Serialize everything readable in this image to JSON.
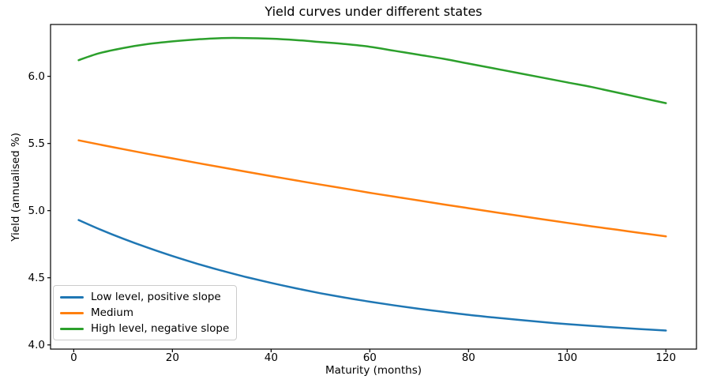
{
  "chart_data": {
    "type": "line",
    "title": "Yield curves under different states",
    "xlabel": "Maturity (months)",
    "ylabel": "Yield (annualised %)",
    "grid": false,
    "legend_position": "lower left",
    "xlim": [
      -4.7,
      126.2
    ],
    "ylim": [
      3.969,
      6.386
    ],
    "xticks": [
      {
        "value": 0,
        "label": "0"
      },
      {
        "value": 20,
        "label": "20"
      },
      {
        "value": 40,
        "label": "40"
      },
      {
        "value": 60,
        "label": "60"
      },
      {
        "value": 80,
        "label": "80"
      },
      {
        "value": 100,
        "label": "100"
      },
      {
        "value": 120,
        "label": "120"
      }
    ],
    "yticks": [
      {
        "value": 4.0,
        "label": "4.0"
      },
      {
        "value": 4.5,
        "label": "4.5"
      },
      {
        "value": 5.0,
        "label": "5.0"
      },
      {
        "value": 5.5,
        "label": "5.5"
      },
      {
        "value": 6.0,
        "label": "6.0"
      }
    ],
    "x": [
      1,
      5,
      10,
      15,
      20,
      25,
      30,
      35,
      40,
      45,
      50,
      55,
      60,
      65,
      70,
      75,
      80,
      85,
      90,
      95,
      100,
      105,
      110,
      115,
      120
    ],
    "series": [
      {
        "name": "Low level, positive slope",
        "color": "#1f77b4",
        "values": [
          4.93,
          4.865,
          4.791,
          4.724,
          4.662,
          4.605,
          4.553,
          4.505,
          4.462,
          4.422,
          4.385,
          4.352,
          4.322,
          4.294,
          4.269,
          4.246,
          4.224,
          4.205,
          4.187,
          4.17,
          4.155,
          4.142,
          4.129,
          4.118,
          4.107
        ]
      },
      {
        "name": "Medium",
        "color": "#ff7f0e",
        "values": [
          5.523,
          5.494,
          5.458,
          5.423,
          5.389,
          5.355,
          5.322,
          5.289,
          5.257,
          5.225,
          5.194,
          5.164,
          5.133,
          5.104,
          5.075,
          5.046,
          5.018,
          4.99,
          4.963,
          4.936,
          4.909,
          4.883,
          4.858,
          4.833,
          4.808
        ]
      },
      {
        "name": "High level, negative slope",
        "color": "#2ca02c",
        "values": [
          6.12,
          6.17,
          6.21,
          6.24,
          6.26,
          6.275,
          6.285,
          6.285,
          6.28,
          6.27,
          6.255,
          6.24,
          6.22,
          6.19,
          6.16,
          6.13,
          6.095,
          6.06,
          6.025,
          5.99,
          5.955,
          5.92,
          5.88,
          5.84,
          5.8
        ]
      }
    ],
    "axes_style": {
      "spine_color": "#000000",
      "tick_color": "#000000",
      "background": "#ffffff",
      "line_width": 2.5
    }
  }
}
